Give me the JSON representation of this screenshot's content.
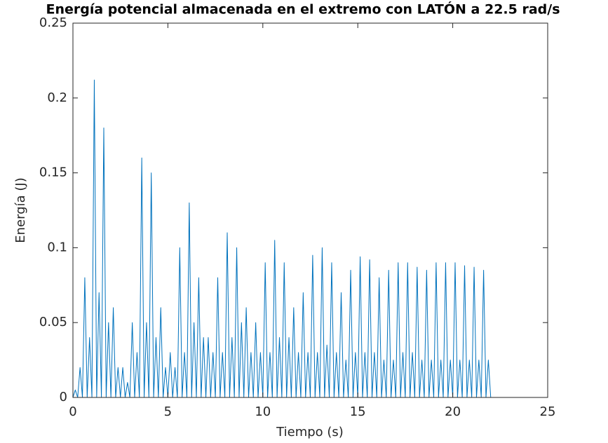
{
  "chart_data": {
    "type": "line",
    "title": "Energía potencial almacenada en el extremo con LATÓN a 22.5 rad/s",
    "x_label": "Tiempo (s)",
    "y_label": "Energía (J)",
    "xlim": [
      0,
      25
    ],
    "xticks": [
      0,
      5,
      10,
      15,
      20,
      25
    ],
    "ylim": [
      0,
      0.25
    ],
    "yticks": [
      0,
      0.05,
      0.1,
      0.15,
      0.2,
      0.25
    ],
    "series": [
      {
        "color": "#0072bd",
        "x": [
          0,
          0.125,
          0.25,
          0.375,
          0.5,
          0.625,
          0.75,
          0.875,
          1,
          1.125,
          1.25,
          1.375,
          1.5,
          1.625,
          1.75,
          1.875,
          2,
          2.125,
          2.25,
          2.375,
          2.5,
          2.625,
          2.75,
          2.875,
          3,
          3.125,
          3.25,
          3.375,
          3.5,
          3.625,
          3.75,
          3.875,
          4,
          4.125,
          4.25,
          4.375,
          4.5,
          4.625,
          4.75,
          4.875,
          5,
          5.125,
          5.25,
          5.375,
          5.5,
          5.625,
          5.75,
          5.875,
          6,
          6.125,
          6.25,
          6.375,
          6.5,
          6.625,
          6.75,
          6.875,
          7,
          7.125,
          7.25,
          7.375,
          7.5,
          7.625,
          7.75,
          7.875,
          8,
          8.125,
          8.25,
          8.375,
          8.5,
          8.625,
          8.75,
          8.875,
          9,
          9.125,
          9.25,
          9.375,
          9.5,
          9.625,
          9.75,
          9.875,
          10,
          10.125,
          10.25,
          10.375,
          10.5,
          10.625,
          10.75,
          10.875,
          11,
          11.125,
          11.25,
          11.375,
          11.5,
          11.625,
          11.75,
          11.875,
          12,
          12.125,
          12.25,
          12.375,
          12.5,
          12.625,
          12.75,
          12.875,
          13,
          13.125,
          13.25,
          13.375,
          13.5,
          13.625,
          13.75,
          13.875,
          14,
          14.125,
          14.25,
          14.375,
          14.5,
          14.625,
          14.75,
          14.875,
          15,
          15.125,
          15.25,
          15.375,
          15.5,
          15.625,
          15.75,
          15.875,
          16,
          16.125,
          16.25,
          16.375,
          16.5,
          16.625,
          16.75,
          16.875,
          17,
          17.125,
          17.25,
          17.375,
          17.5,
          17.625,
          17.75,
          17.875,
          18,
          18.125,
          18.25,
          18.375,
          18.5,
          18.625,
          18.75,
          18.875,
          19,
          19.125,
          19.25,
          19.375,
          19.5,
          19.625,
          19.75,
          19.875,
          20,
          20.125,
          20.25,
          20.375,
          20.5,
          20.625,
          20.75,
          20.875,
          21,
          21.125,
          21.25,
          21.375,
          21.5,
          21.625,
          21.75,
          21.875,
          22
        ],
        "values": [
          0,
          0.005,
          0,
          0.02,
          0,
          0.08,
          0,
          0.04,
          0,
          0.212,
          0,
          0.07,
          0,
          0.18,
          0,
          0.05,
          0,
          0.06,
          0,
          0.02,
          0,
          0.02,
          0,
          0.01,
          0,
          0.05,
          0,
          0.03,
          0,
          0.16,
          0,
          0.05,
          0,
          0.15,
          0,
          0.04,
          0,
          0.06,
          0,
          0.02,
          0,
          0.03,
          0,
          0.02,
          0,
          0.1,
          0,
          0.03,
          0,
          0.13,
          0,
          0.05,
          0,
          0.08,
          0,
          0.04,
          0,
          0.04,
          0,
          0.03,
          0,
          0.08,
          0,
          0.03,
          0,
          0.11,
          0,
          0.04,
          0,
          0.1,
          0,
          0.05,
          0,
          0.06,
          0,
          0.03,
          0,
          0.05,
          0,
          0.03,
          0,
          0.09,
          0,
          0.03,
          0,
          0.105,
          0,
          0.04,
          0,
          0.09,
          0,
          0.04,
          0,
          0.06,
          0,
          0.03,
          0,
          0.07,
          0,
          0.03,
          0,
          0.095,
          0,
          0.03,
          0,
          0.1,
          0,
          0.035,
          0,
          0.09,
          0,
          0.03,
          0,
          0.07,
          0,
          0.025,
          0,
          0.085,
          0,
          0.03,
          0,
          0.094,
          0,
          0.03,
          0,
          0.092,
          0,
          0.03,
          0,
          0.08,
          0,
          0.025,
          0,
          0.085,
          0,
          0.025,
          0,
          0.09,
          0,
          0.03,
          0,
          0.09,
          0,
          0.03,
          0,
          0.087,
          0,
          0.025,
          0,
          0.085,
          0,
          0.025,
          0,
          0.09,
          0,
          0.025,
          0,
          0.09,
          0,
          0.025,
          0,
          0.09,
          0,
          0.025,
          0,
          0.088,
          0,
          0.025,
          0,
          0.087,
          0,
          0.025,
          0,
          0.085,
          0,
          0.025,
          0
        ]
      }
    ]
  }
}
